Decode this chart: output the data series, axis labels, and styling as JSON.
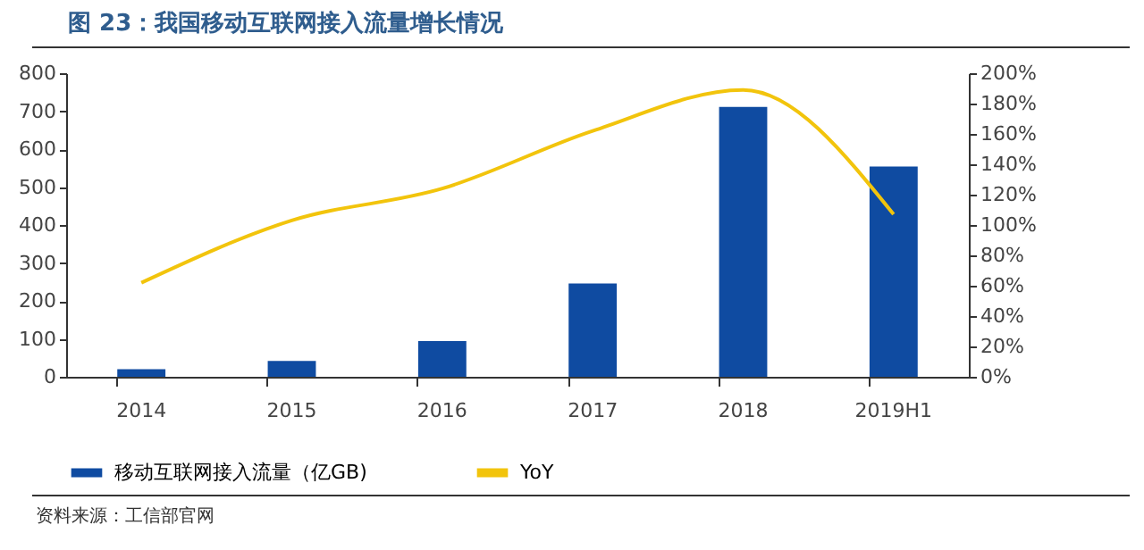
{
  "chart_data": {
    "type": "bar",
    "title": "图 23：我国移动互联网接入流量增长情况",
    "categories": [
      "2014",
      "2015",
      "2016",
      "2017",
      "2018",
      "2019H1"
    ],
    "series": [
      {
        "name": "移动互联网接入流量（亿GB)",
        "color": "#0f4ba1",
        "values": [
          20,
          42,
          94,
          246,
          711,
          554
        ]
      },
      {
        "name": "YoY",
        "type": "line",
        "axis": "y2",
        "color": "#f2c40c",
        "values": [
          62,
          103,
          124,
          162,
          189,
          107
        ]
      }
    ],
    "ylim": [
      0,
      800
    ],
    "yticks": [
      0,
      100,
      200,
      300,
      400,
      500,
      600,
      700,
      800
    ],
    "y2lim": [
      0,
      200
    ],
    "y2ticks": [
      {
        "value": 0,
        "label": "0%"
      },
      {
        "value": 20,
        "label": "20%"
      },
      {
        "value": 40,
        "label": "40%"
      },
      {
        "value": 60,
        "label": "60%"
      },
      {
        "value": 80,
        "label": "80%"
      },
      {
        "value": 100,
        "label": "100%"
      },
      {
        "value": 120,
        "label": "120%"
      },
      {
        "value": 140,
        "label": "140%"
      },
      {
        "value": 160,
        "label": "160%"
      },
      {
        "value": 180,
        "label": "180%"
      },
      {
        "value": 200,
        "label": "200%"
      }
    ],
    "legend": "bottom",
    "grid": false,
    "annotations": [
      "资料来源：工信部官网"
    ]
  }
}
